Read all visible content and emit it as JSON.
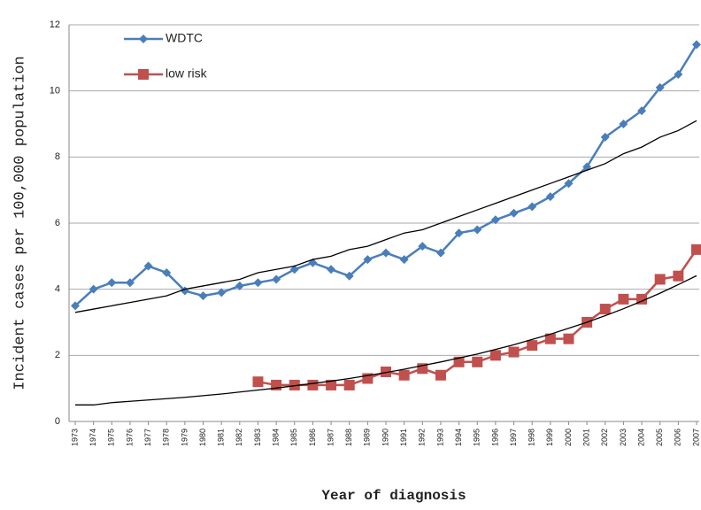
{
  "chart_data": {
    "type": "line",
    "y_label": "Incident cases per 100,000 population",
    "x_label": "Year of diagnosis",
    "categories": [
      "1973",
      "1974",
      "1975",
      "1976",
      "1977",
      "1978",
      "1979",
      "1980",
      "1981",
      "1982",
      "1983",
      "1984",
      "1985",
      "1986",
      "1987",
      "1988",
      "1989",
      "1990",
      "1991",
      "1992",
      "1993",
      "1994",
      "1995",
      "1996",
      "1997",
      "1998",
      "1999",
      "2000",
      "2001",
      "2002",
      "2003",
      "2004",
      "2005",
      "2006",
      "2007"
    ],
    "series": [
      {
        "name": "WDTC",
        "color": "#4a7ebb",
        "marker": "diamond",
        "values": [
          3.5,
          4.0,
          4.2,
          4.2,
          4.7,
          4.5,
          3.95,
          3.8,
          3.9,
          4.1,
          4.2,
          4.3,
          4.6,
          4.8,
          4.6,
          4.4,
          4.9,
          5.1,
          4.9,
          5.3,
          5.1,
          5.7,
          5.8,
          6.1,
          6.3,
          6.5,
          6.8,
          7.2,
          7.7,
          8.6,
          9.0,
          9.4,
          10.1,
          10.5,
          11.4
        ]
      },
      {
        "name": "low risk",
        "color": "#c0504d",
        "marker": "square",
        "values": [
          null,
          null,
          null,
          null,
          null,
          null,
          null,
          null,
          null,
          null,
          1.2,
          1.1,
          1.1,
          1.1,
          1.1,
          1.1,
          1.3,
          1.5,
          1.4,
          1.6,
          1.4,
          1.8,
          1.8,
          2.0,
          2.1,
          2.3,
          2.5,
          2.5,
          3.0,
          3.4,
          3.7,
          3.7,
          4.3,
          4.4,
          5.2
        ]
      },
      {
        "color": "#000000",
        "marker": "none",
        "values": [
          3.3,
          3.4,
          3.5,
          3.6,
          3.7,
          3.8,
          4.0,
          4.1,
          4.2,
          4.3,
          4.5,
          4.6,
          4.7,
          4.9,
          5.0,
          5.2,
          5.3,
          5.5,
          5.7,
          5.8,
          6.0,
          6.2,
          6.4,
          6.6,
          6.8,
          7.0,
          7.2,
          7.4,
          7.6,
          7.8,
          8.1,
          8.3,
          8.6,
          8.8,
          9.1
        ]
      },
      {
        "color": "#000000",
        "marker": "none",
        "values": [
          0.5,
          0.5,
          0.57,
          0.61,
          0.65,
          0.69,
          0.73,
          0.78,
          0.83,
          0.89,
          0.95,
          1.01,
          1.08,
          1.15,
          1.22,
          1.3,
          1.39,
          1.48,
          1.58,
          1.69,
          1.8,
          1.92,
          2.04,
          2.18,
          2.32,
          2.48,
          2.64,
          2.82,
          3.0,
          3.2,
          3.41,
          3.64,
          3.88,
          4.14,
          4.41
        ]
      }
    ],
    "ylim": [
      0,
      12
    ],
    "yticks": [
      0,
      2,
      4,
      6,
      8,
      10,
      12
    ],
    "grid": true
  }
}
